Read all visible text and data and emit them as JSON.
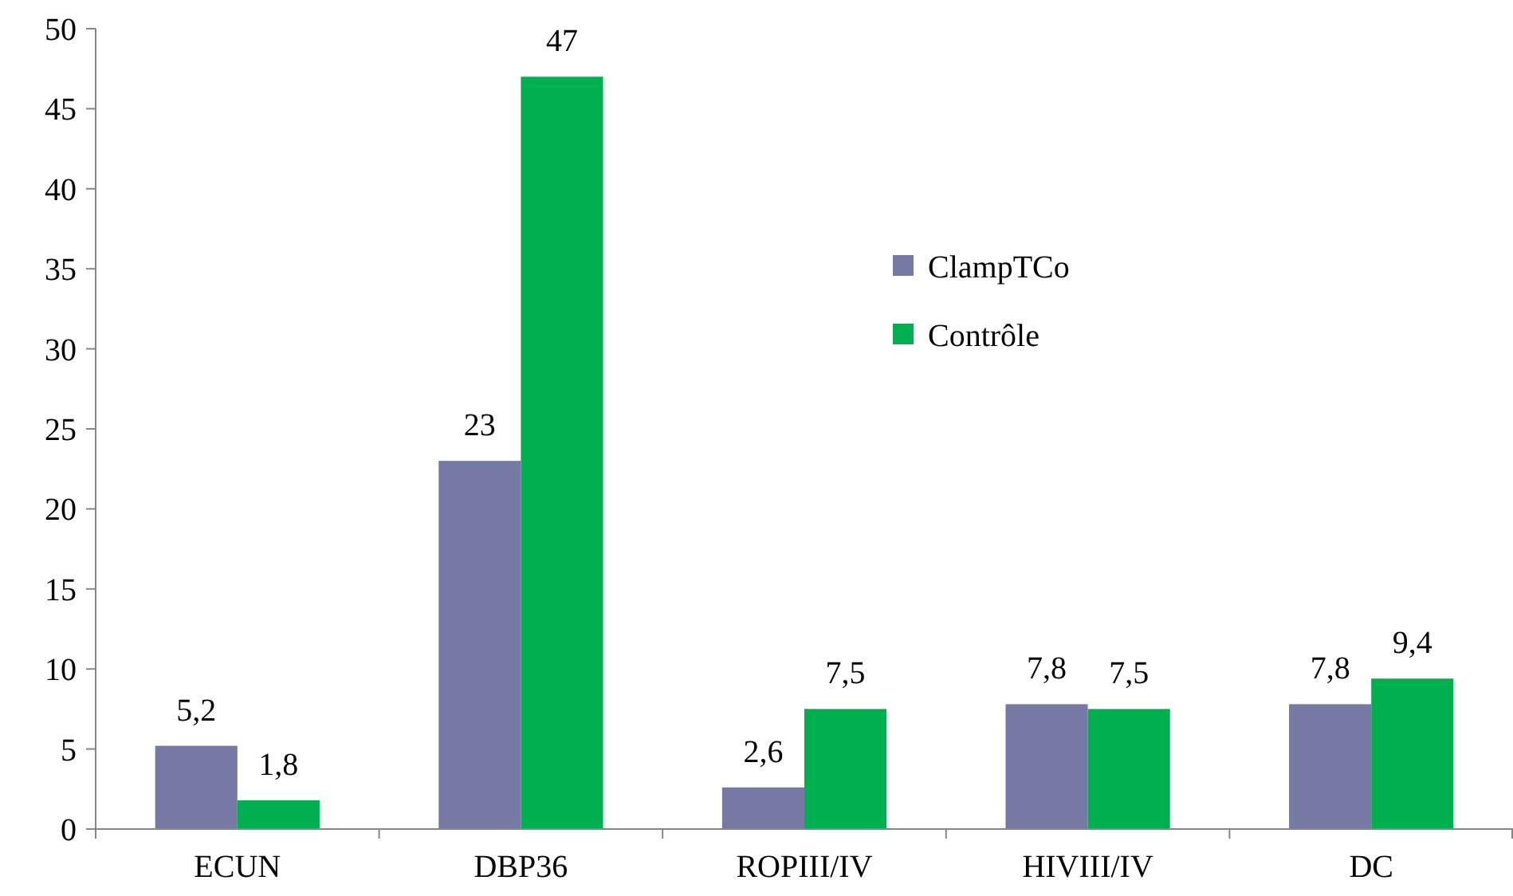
{
  "chart_data": {
    "type": "bar",
    "categories": [
      "ECUN",
      "DBP36",
      "ROPIII/IV",
      "HIVIII/IV",
      "DC"
    ],
    "series": [
      {
        "name": "ClampTCo",
        "color": "#7579a4",
        "values": [
          5.2,
          23,
          2.6,
          7.8,
          7.8
        ],
        "value_labels": [
          "5,2",
          "23",
          "2,6",
          "7,8",
          "7,8"
        ]
      },
      {
        "name": "Contrôle",
        "color": "#00b050",
        "values": [
          1.8,
          47,
          7.5,
          7.5,
          9.4
        ],
        "value_labels": [
          "1,8",
          "47",
          "7,5",
          "7,5",
          "9,4"
        ]
      }
    ],
    "ylim": [
      0,
      50
    ],
    "yticks": [
      0,
      5,
      10,
      15,
      20,
      25,
      30,
      35,
      40,
      45,
      50
    ],
    "grid": false,
    "legend": "right"
  }
}
